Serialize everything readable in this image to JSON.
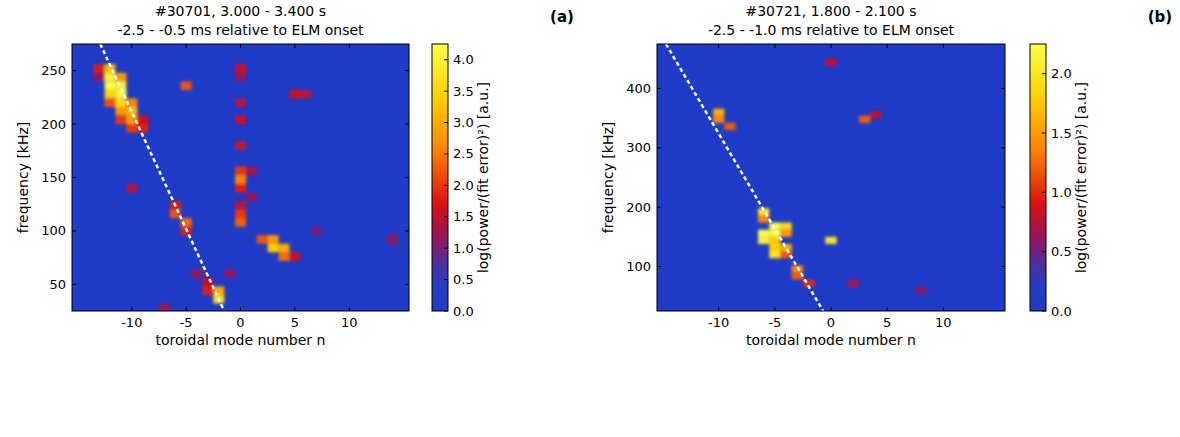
{
  "chart_data": [
    {
      "type": "heatmap",
      "label": "(a)",
      "title": "#30701, 3.000 - 3.400 s",
      "subtitle": "-2.5 - -0.5 ms relative to ELM onset",
      "x_label": "toroidal mode number n",
      "y_label": "frequency [kHz]",
      "xlim": [
        -15.5,
        15.5
      ],
      "xticks": [
        -10,
        -5,
        0,
        5,
        10
      ],
      "ylim": [
        25,
        275
      ],
      "yticks": [
        50,
        100,
        150,
        200,
        250
      ],
      "f_bin": 8,
      "cells": [
        [
          -13,
          252,
          1.8
        ],
        [
          -13,
          244,
          1.2
        ],
        [
          -12,
          252,
          3.2
        ],
        [
          -12,
          244,
          4.0
        ],
        [
          -12,
          236,
          4.2
        ],
        [
          -12,
          228,
          3.5
        ],
        [
          -12,
          220,
          2.2
        ],
        [
          -11,
          244,
          2.8
        ],
        [
          -11,
          236,
          4.0
        ],
        [
          -11,
          228,
          4.1
        ],
        [
          -11,
          220,
          3.6
        ],
        [
          -11,
          212,
          2.8
        ],
        [
          -11,
          204,
          2.0
        ],
        [
          -10,
          220,
          2.6
        ],
        [
          -10,
          212,
          3.2
        ],
        [
          -10,
          204,
          2.8
        ],
        [
          -10,
          196,
          2.0
        ],
        [
          -9,
          204,
          1.6
        ],
        [
          -9,
          196,
          1.8
        ],
        [
          -6,
          124,
          1.8
        ],
        [
          -6,
          116,
          2.2
        ],
        [
          -5,
          108,
          2.4
        ],
        [
          -5,
          100,
          1.8
        ],
        [
          -4,
          60,
          1.2
        ],
        [
          -3,
          52,
          1.6
        ],
        [
          -2,
          44,
          3.0
        ],
        [
          -2,
          36,
          3.6
        ],
        [
          -3,
          44,
          1.8
        ],
        [
          0,
          252,
          1.6
        ],
        [
          0,
          244,
          1.2
        ],
        [
          0,
          220,
          1.4
        ],
        [
          0,
          204,
          1.6
        ],
        [
          0,
          180,
          1.5
        ],
        [
          0,
          156,
          2.0
        ],
        [
          0,
          148,
          2.6
        ],
        [
          0,
          140,
          1.8
        ],
        [
          0,
          124,
          1.4
        ],
        [
          0,
          116,
          2.0
        ],
        [
          0,
          108,
          2.3
        ],
        [
          1,
          132,
          1.2
        ],
        [
          1,
          156,
          1.3
        ],
        [
          2,
          92,
          2.2
        ],
        [
          3,
          92,
          2.8
        ],
        [
          3,
          84,
          3.4
        ],
        [
          4,
          84,
          3.0
        ],
        [
          4,
          76,
          2.4
        ],
        [
          5,
          76,
          1.6
        ],
        [
          -5,
          236,
          2.2
        ],
        [
          5,
          228,
          1.6
        ],
        [
          6,
          228,
          1.4
        ],
        [
          -10,
          140,
          1.4
        ],
        [
          -1,
          60,
          1.2
        ],
        [
          7,
          100,
          1.0
        ],
        [
          14,
          92,
          1.2
        ],
        [
          -7,
          28,
          1.2
        ]
      ],
      "colorbar": {
        "label": "log(power/(fit error)²) [a.u.]",
        "lim": [
          0,
          4.25
        ],
        "ticks": [
          {
            "value": 0,
            "label": "0.0"
          },
          {
            "value": 0.5,
            "label": "0.5"
          },
          {
            "value": 1,
            "label": "1.0"
          },
          {
            "value": 1.5,
            "label": "1.5"
          },
          {
            "value": 2,
            "label": "2.0"
          },
          {
            "value": 2.5,
            "label": "2.5"
          },
          {
            "value": 3,
            "label": "3.0"
          },
          {
            "value": 3.5,
            "label": "3.5"
          },
          {
            "value": 4,
            "label": "4.0"
          }
        ]
      },
      "guide_line": {
        "points": [
          [
            -12.9,
            275
          ],
          [
            -1.5,
            25
          ]
        ],
        "color": "#ffffff",
        "line_style": "dashed"
      }
    },
    {
      "type": "heatmap",
      "label": "(b)",
      "title": "#30721, 1.800 - 2.100 s",
      "subtitle": "-2.5 - -1.0 ms relative to ELM onset",
      "x_label": "toroidal mode number n",
      "y_label": "frequency [kHz]",
      "xlim": [
        -15.5,
        15.5
      ],
      "xticks": [
        -10,
        -5,
        0,
        5,
        10
      ],
      "ylim": [
        25,
        475
      ],
      "yticks": [
        100,
        200,
        300,
        400
      ],
      "f_bin": 12,
      "cells": [
        [
          -10,
          360,
          1.6
        ],
        [
          -10,
          348,
          1.4
        ],
        [
          -9,
          336,
          1.2
        ],
        [
          -6,
          192,
          2.0
        ],
        [
          -6,
          180,
          1.4
        ],
        [
          -5,
          168,
          2.2
        ],
        [
          -6,
          156,
          2.2
        ],
        [
          -5,
          156,
          2.2
        ],
        [
          -6,
          144,
          2.1
        ],
        [
          -5,
          144,
          1.8
        ],
        [
          -4,
          168,
          1.9
        ],
        [
          -4,
          156,
          1.5
        ],
        [
          -5,
          132,
          1.8
        ],
        [
          -5,
          120,
          2.0
        ],
        [
          -4,
          132,
          1.6
        ],
        [
          -4,
          120,
          1.2
        ],
        [
          -3,
          96,
          1.4
        ],
        [
          -3,
          84,
          1.2
        ],
        [
          -2,
          72,
          1.0
        ],
        [
          0,
          144,
          2.0
        ],
        [
          0,
          444,
          0.8
        ],
        [
          3,
          348,
          1.2
        ],
        [
          4,
          356,
          0.8
        ],
        [
          2,
          72,
          0.7
        ],
        [
          8,
          60,
          0.6
        ]
      ],
      "colorbar": {
        "label": "log(power/(fit error)²) [a.u.]",
        "lim": [
          0,
          2.25
        ],
        "ticks": [
          {
            "value": 0,
            "label": "0.0"
          },
          {
            "value": 0.5,
            "label": "0.5"
          },
          {
            "value": 1,
            "label": "1.0"
          },
          {
            "value": 1.5,
            "label": "1.5"
          },
          {
            "value": 2,
            "label": "2.0"
          }
        ]
      },
      "guide_line": {
        "points": [
          [
            -14.7,
            475
          ],
          [
            -0.7,
            25
          ]
        ],
        "color": "#ffffff",
        "line_style": "dashed"
      }
    }
  ]
}
